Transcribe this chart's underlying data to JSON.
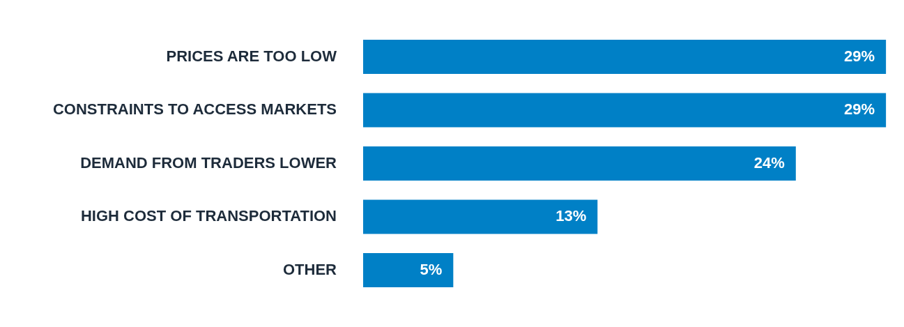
{
  "chart_data": {
    "type": "bar",
    "orientation": "horizontal",
    "categories": [
      "PRICES ARE TOO LOW",
      "CONSTRAINTS TO ACCESS MARKETS",
      "DEMAND FROM TRADERS LOWER",
      "HIGH COST OF TRANSPORTATION",
      "OTHER"
    ],
    "values": [
      29,
      29,
      24,
      13,
      5
    ],
    "value_labels": [
      "29%",
      "29%",
      "24%",
      "13%",
      "5%"
    ],
    "color": "#0080c6"
  }
}
